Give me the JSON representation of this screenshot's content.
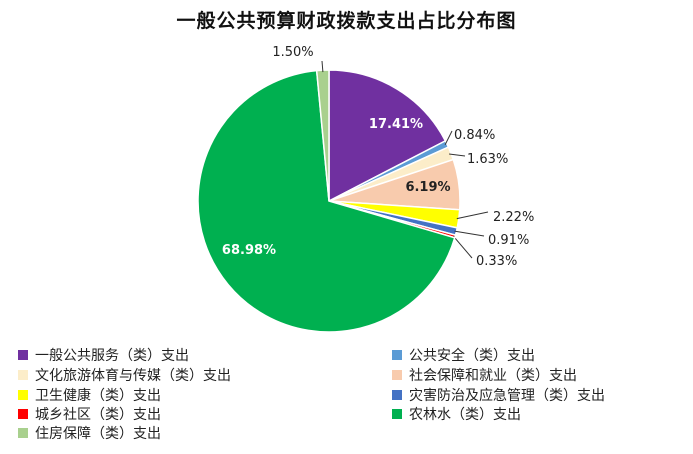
{
  "chart_data": {
    "type": "pie",
    "title": "一般公共预算财政拨款支出占比分布图",
    "series": [
      {
        "values": [
          {
            "name": "一般公共服务（类）支出",
            "value": 17.41,
            "label": "17.41%",
            "color": "#7030A0"
          },
          {
            "name": "公共安全（类）支出",
            "value": 0.84,
            "label": "0.84%",
            "color": "#5B9BD5"
          },
          {
            "name": "文化旅游体育与传媒（类）支出",
            "value": 1.63,
            "label": "1.63%",
            "color": "#FCEDC9"
          },
          {
            "name": "社会保障和就业（类）支出",
            "value": 6.19,
            "label": "6.19%",
            "color": "#F8CBAD"
          },
          {
            "name": "卫生健康（类）支出",
            "value": 2.22,
            "label": "2.22%",
            "color": "#FFFF00"
          },
          {
            "name": "灾害防治及应急管理（类）支出",
            "value": 0.91,
            "label": "0.91%",
            "color": "#4472C4"
          },
          {
            "name": "城乡社区（类）支出",
            "value": 0.33,
            "label": "0.33%",
            "color": "#FF0000"
          },
          {
            "name": "农林水（类）支出",
            "value": 68.98,
            "label": "68.98%",
            "color": "#00B050"
          },
          {
            "name": "住房保障（类）支出",
            "value": 1.5,
            "label": "1.50%",
            "color": "#A9D08E"
          }
        ]
      }
    ],
    "legend_position": "bottom"
  }
}
